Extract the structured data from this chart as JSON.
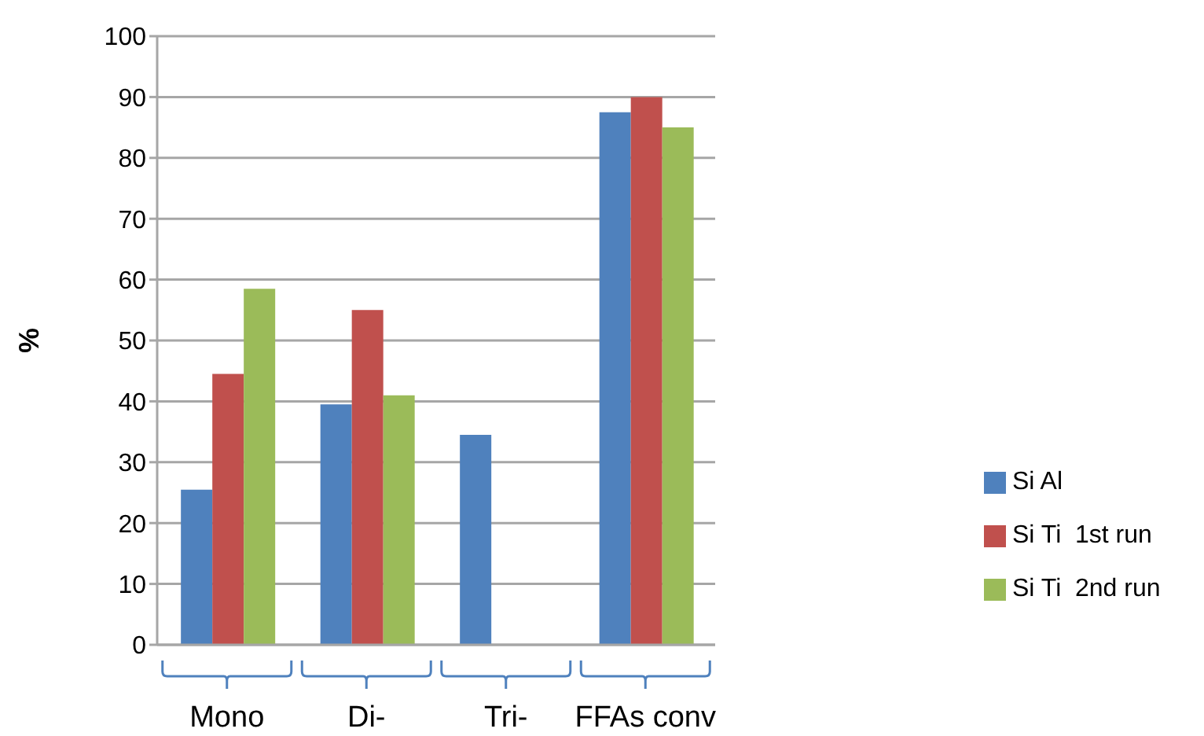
{
  "chart_data": {
    "type": "bar",
    "ylabel": "%",
    "categories": [
      "Mono",
      "Di-",
      "Tri-",
      "FFAs conv"
    ],
    "series": [
      {
        "name": "Si Al",
        "color": "#4f81bd",
        "values": [
          25.5,
          39.5,
          34.5,
          87.5
        ]
      },
      {
        "name": "Si Ti  1st run",
        "color": "#c0504d",
        "values": [
          44.5,
          55,
          null,
          90
        ]
      },
      {
        "name": "Si Ti  2nd run",
        "color": "#9bbb59",
        "values": [
          58.5,
          41,
          null,
          85
        ]
      }
    ],
    "ylim": [
      0,
      100
    ],
    "yticks": [
      0,
      10,
      20,
      30,
      40,
      50,
      60,
      70,
      80,
      90,
      100
    ],
    "grid": "y",
    "legend": "right"
  }
}
